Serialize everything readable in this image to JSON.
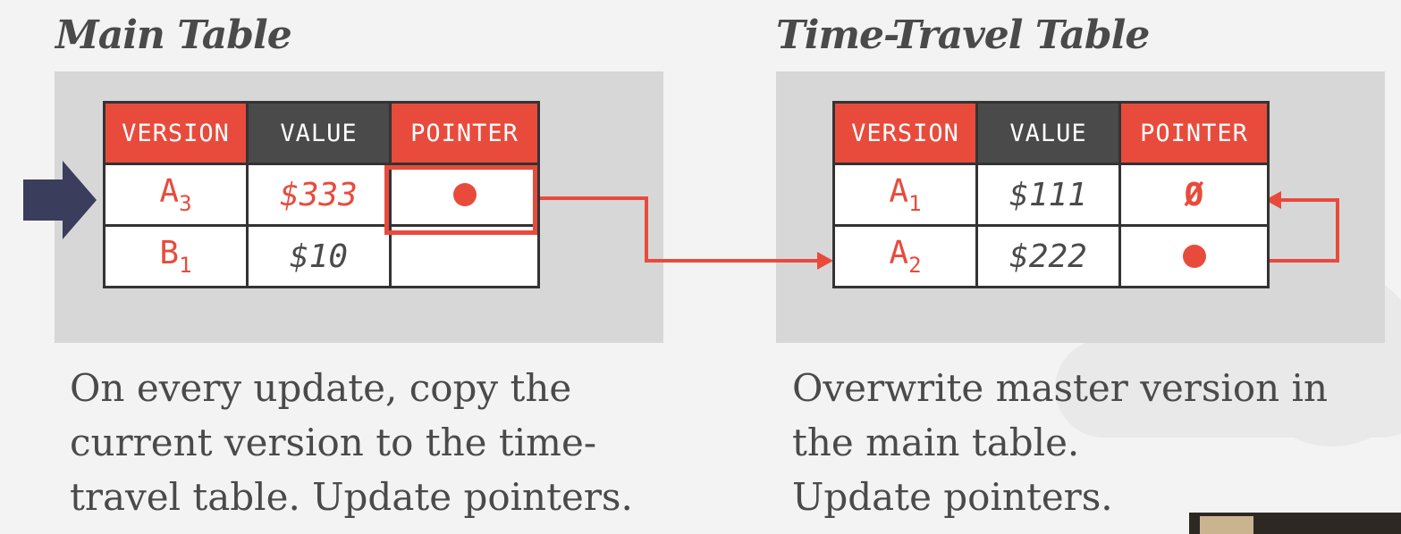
{
  "main_table": {
    "title": "Main Table",
    "headers": [
      "VERSION",
      "VALUE",
      "POINTER"
    ],
    "rows": [
      {
        "version": "A",
        "version_sub": "3",
        "value": "$333",
        "pointer": "dot"
      },
      {
        "version": "B",
        "version_sub": "1",
        "value": "$10",
        "pointer": ""
      }
    ],
    "caption_lines": [
      "On every update, copy the",
      "current version to the time-",
      "travel table. Update pointers."
    ]
  },
  "time_travel_table": {
    "title": "Time-Travel Table",
    "headers": [
      "VERSION",
      "VALUE",
      "POINTER"
    ],
    "rows": [
      {
        "version": "A",
        "version_sub": "1",
        "value": "$111",
        "pointer": "Ø"
      },
      {
        "version": "A",
        "version_sub": "2",
        "value": "$222",
        "pointer": "dot"
      }
    ],
    "caption_lines": [
      "Overwrite master version in",
      "the main table.",
      "Update pointers."
    ]
  },
  "colors": {
    "accent_red": "#e84b3c",
    "header_dark": "#4a4a4a",
    "panel_gray": "#d7d7d7",
    "arrow_navy": "#3a3d5c",
    "text_gray": "#4a4a4a"
  }
}
